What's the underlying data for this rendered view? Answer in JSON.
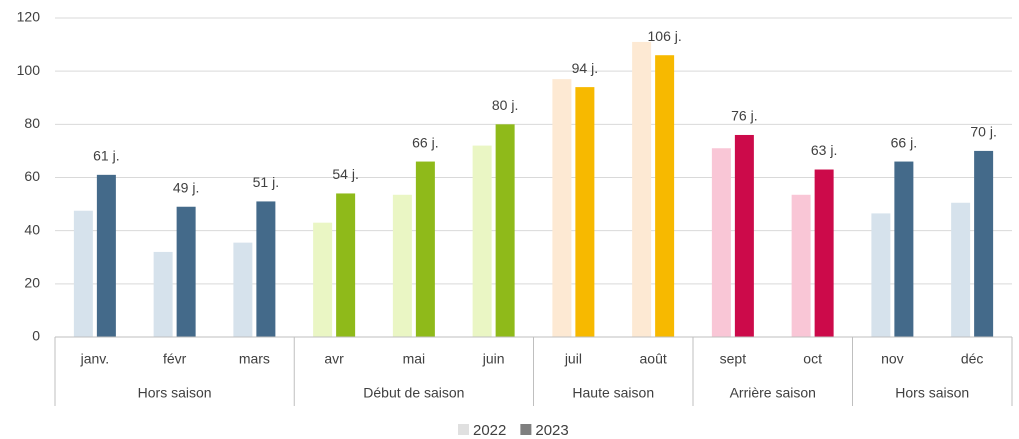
{
  "chart_data": {
    "type": "bar",
    "categories": [
      "janv.",
      "févr",
      "mars",
      "avr",
      "mai",
      "juin",
      "juil",
      "août",
      "sept",
      "oct",
      "nov",
      "déc"
    ],
    "groups": [
      {
        "name": "Hors saison",
        "count": 3
      },
      {
        "name": "Début de saison",
        "count": 3
      },
      {
        "name": "Haute saison",
        "count": 2
      },
      {
        "name": "Arrière saison",
        "count": 2
      },
      {
        "name": "Hors saison",
        "count": 2
      }
    ],
    "series": [
      {
        "name": "2022",
        "color": "#e0e0e0",
        "colors": [
          "#d6e2ec",
          "#d6e2ec",
          "#d6e2ec",
          "#eaf6c4",
          "#eaf6c4",
          "#eaf6c4",
          "#fde9d3",
          "#fde9d3",
          "#f9c6d6",
          "#f9c6d6",
          "#d6e2ec",
          "#d6e2ec"
        ],
        "values": [
          47.5,
          32,
          35.5,
          43,
          53.5,
          72,
          97,
          111,
          71,
          53.5,
          46.5,
          50.5
        ]
      },
      {
        "name": "2023",
        "color": "#7f7f7f",
        "colors": [
          "#446a8a",
          "#446a8a",
          "#446a8a",
          "#8fba1a",
          "#8fba1a",
          "#8fba1a",
          "#f7b900",
          "#f7b900",
          "#cc0a4a",
          "#cc0a4a",
          "#446a8a",
          "#446a8a"
        ],
        "values": [
          61,
          49,
          51,
          54,
          66,
          80,
          94,
          106,
          76,
          63,
          66,
          70
        ],
        "value_labels": [
          "61 j.",
          "49 j.",
          "51 j.",
          "54 j.",
          "66 j.",
          "80 j.",
          "94 j.",
          "106 j.",
          "76 j.",
          "63 j.",
          "66 j.",
          "70 j."
        ]
      }
    ],
    "ylim": [
      0,
      120
    ],
    "yticks": [
      0,
      20,
      40,
      60,
      80,
      100,
      120
    ],
    "grid": true,
    "legend": "bottom"
  }
}
